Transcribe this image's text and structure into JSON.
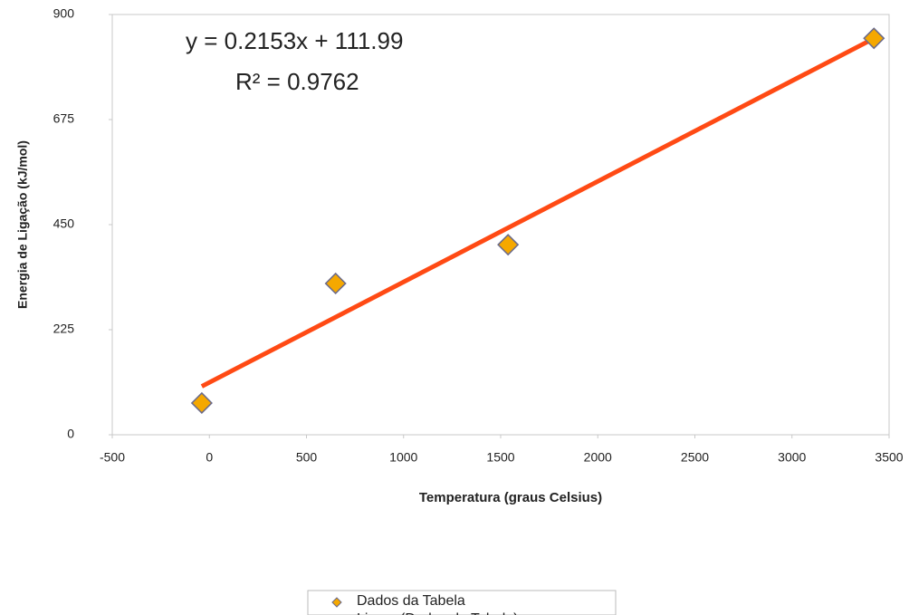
{
  "chart_data": {
    "type": "scatter",
    "x_label": "Temperatura (graus Celsius)",
    "y_label": "Energia de Ligação (kJ/mol)",
    "annotations": [
      "y = 0.2153x + 111.99",
      "R² = 0.9762"
    ],
    "series": [
      {
        "name": "Dados da Tabela",
        "color": "#f5a800",
        "x": [
          -39,
          650,
          1538,
          3422
        ],
        "values": [
          68,
          324,
          407,
          849
        ]
      }
    ],
    "trendline": {
      "name": "Linear.(Dados da Tabela)",
      "color": "#ff4a14",
      "slope": 0.2153,
      "intercept": 111.99
    },
    "xlim": [
      -500,
      3500
    ],
    "xticks": [
      -500,
      0,
      500,
      1000,
      1500,
      2000,
      2500,
      3000,
      3500
    ],
    "ylim": [
      0,
      900
    ],
    "yticks": [
      0,
      225,
      450,
      675,
      900
    ],
    "grid": false,
    "legend": "bottom"
  }
}
